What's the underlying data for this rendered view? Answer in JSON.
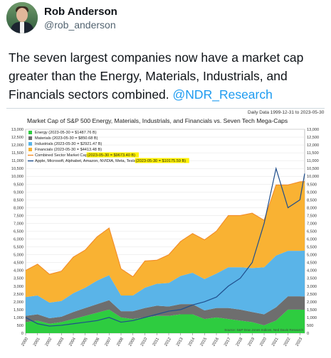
{
  "author": {
    "name": "Rob Anderson",
    "handle": "@rob_anderson"
  },
  "tweet": {
    "text": "The seven largest companies now have a market cap greater than the Energy, Materials, Industrials, and Financials sectors combined.",
    "mention": "@NDR_Research"
  },
  "chart_data": {
    "type": "area",
    "title": "Market Cap of S&P 500 Energy, Materials, Industrials, and Financials vs. Seven Tech Mega-Caps",
    "daily_data": "Daily Data 1999-12-31 to 2023-05-30",
    "source": "Source: S&P Dow Jones Indices, Ned Davis Research",
    "ylim": [
      0,
      13000
    ],
    "y_ticks": [
      "13,000",
      "12,500",
      "12,000",
      "11,500",
      "11,000",
      "10,500",
      "10,000",
      "9,500",
      "9,000",
      "8,500",
      "8,000",
      "7,500",
      "7,000",
      "6,500",
      "6,000",
      "5,500",
      "5,000",
      "4,500",
      "4,000",
      "3,500",
      "3,000",
      "2,500",
      "2,000",
      "1,500",
      "1,000",
      "500",
      "0"
    ],
    "x_ticks": [
      "2000",
      "2001",
      "2002",
      "2003",
      "2004",
      "2005",
      "2006",
      "2007",
      "2008",
      "2009",
      "2010",
      "2011",
      "2012",
      "2013",
      "2014",
      "2015",
      "2016",
      "2017",
      "2018",
      "2019",
      "2020",
      "2021",
      "2022",
      "2023"
    ],
    "legend": [
      {
        "label": "Energy (2023-05-30 = $1487.76 B)",
        "color": "#2ecc40",
        "kind": "box"
      },
      {
        "label": "Materials (2023-05-30 = $850.68 B)",
        "color": "#6e6e6e",
        "kind": "box"
      },
      {
        "label": "Industrials (2023-05-30 = $2921.47 B)",
        "color": "#5ab4e8",
        "kind": "box"
      },
      {
        "label": "Financials (2023-05-30 = $4413.48 B)",
        "color": "#f9b233",
        "kind": "box"
      },
      {
        "label": "Combined Sector Market Cap",
        "highlight": "(2023-05-30 = $9673.40 B)",
        "color": "#f28c28",
        "kind": "line"
      },
      {
        "label": "Apple, Microsoft, Alphabet, Amazon, NVIDIA, Meta, Tesla",
        "highlight": "(2023-05-30 = $10175.59 B)",
        "color": "#1f4e8c",
        "kind": "line"
      }
    ],
    "x": [
      2000,
      2001,
      2002,
      2003,
      2004,
      2005,
      2006,
      2007,
      2008,
      2009,
      2010,
      2011,
      2012,
      2013,
      2014,
      2015,
      2016,
      2017,
      2018,
      2019,
      2020,
      2021,
      2022,
      2023,
      2023.4
    ],
    "series": [
      {
        "name": "Energy",
        "values": [
          700,
          800,
          600,
          700,
          900,
          1100,
          1300,
          1500,
          1000,
          900,
          1000,
          1100,
          1100,
          1200,
          1200,
          900,
          1000,
          900,
          800,
          700,
          500,
          800,
          1500,
          1500,
          1490
        ]
      },
      {
        "name": "Materials",
        "values": [
          400,
          400,
          350,
          350,
          450,
          500,
          550,
          600,
          400,
          500,
          600,
          650,
          600,
          650,
          650,
          550,
          600,
          700,
          700,
          650,
          700,
          850,
          850,
          850,
          850
        ]
      },
      {
        "name": "Industrials",
        "values": [
          1200,
          1200,
          1000,
          1000,
          1200,
          1300,
          1500,
          1600,
          1000,
          1000,
          1300,
          1400,
          1500,
          1800,
          2000,
          2000,
          2200,
          2600,
          2700,
          2800,
          3000,
          3300,
          2900,
          2900,
          2920
        ]
      },
      {
        "name": "Financials",
        "values": [
          1700,
          2000,
          1800,
          1900,
          2300,
          2400,
          2800,
          3000,
          1700,
          1200,
          1700,
          1500,
          1800,
          2200,
          2500,
          2500,
          2700,
          3300,
          3300,
          3500,
          3000,
          4500,
          4200,
          4400,
          4410
        ]
      },
      {
        "name": "Apple, Microsoft, Alphabet, Amazon, NVIDIA, Meta, Tesla",
        "values": [
          1000,
          600,
          450,
          500,
          600,
          700,
          800,
          1000,
          700,
          800,
          1000,
          1200,
          1400,
          1500,
          1800,
          2000,
          2300,
          3000,
          3500,
          4500,
          7000,
          10500,
          8000,
          8500,
          10176
        ]
      }
    ]
  }
}
